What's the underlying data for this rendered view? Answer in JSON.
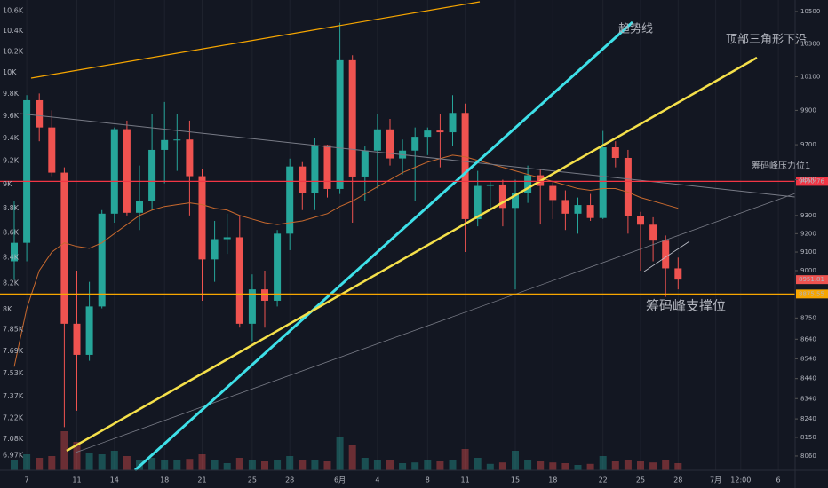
{
  "chart_data": {
    "type": "candlestick",
    "categories": [
      null,
      "7",
      null,
      null,
      null,
      "11",
      null,
      null,
      "14",
      null,
      null,
      null,
      "18",
      null,
      null,
      "21",
      null,
      null,
      null,
      "25",
      null,
      null,
      "28",
      null,
      null,
      null,
      "6月",
      null,
      null,
      "4",
      null,
      null,
      null,
      "8",
      null,
      null,
      "11",
      null,
      null,
      null,
      "15",
      null,
      null,
      "18",
      null,
      null,
      null,
      "22",
      null,
      null,
      "25",
      null,
      null,
      "28",
      null,
      null,
      "7月",
      null,
      "12:00",
      null,
      null,
      "6"
    ],
    "open": [
      9050,
      9150,
      9960,
      9800,
      9540,
      8720,
      8560,
      8810,
      9310,
      9790,
      9315,
      9380,
      9670,
      9727,
      9730,
      9520,
      9060,
      9170,
      9180,
      8720,
      8900,
      8840,
      9200,
      9575,
      9427,
      9697,
      9448,
      10200,
      9518,
      9666,
      9789,
      9621,
      9666,
      9746,
      9782,
      9772,
      9885,
      9280,
      9465,
      9473,
      9342,
      9426,
      9525,
      9465,
      9386,
      9310,
      9358,
      9286,
      9685,
      9624,
      9296,
      9249,
      9162,
      9012,
      null,
      null,
      null,
      null,
      null,
      null,
      null,
      null
    ],
    "high": [
      9380,
      9990,
      10000,
      9900,
      9570,
      9000,
      8940,
      9330,
      9800,
      9840,
      9580,
      9880,
      9950,
      9880,
      9840,
      9560,
      9270,
      9310,
      9300,
      8980,
      9000,
      9220,
      9620,
      9600,
      9740,
      9700,
      10430,
      10230,
      9690,
      9880,
      9850,
      9730,
      9800,
      9800,
      9880,
      9990,
      9940,
      9550,
      9490,
      9500,
      9500,
      9580,
      9560,
      9490,
      9440,
      9400,
      9420,
      9780,
      9720,
      9670,
      9320,
      9290,
      9190,
      9070,
      null,
      null,
      null,
      null,
      null,
      null,
      null,
      null
    ],
    "low": [
      8950,
      9050,
      9720,
      9520,
      8200,
      8280,
      8530,
      8800,
      9260,
      9300,
      9220,
      9330,
      9480,
      9550,
      9300,
      8840,
      8940,
      9090,
      8700,
      8630,
      8700,
      8810,
      9110,
      9330,
      9330,
      9400,
      9420,
      9260,
      9380,
      9450,
      9580,
      9530,
      9380,
      9640,
      9570,
      9690,
      9100,
      9240,
      9330,
      9240,
      8900,
      9370,
      9250,
      9280,
      9220,
      9200,
      9270,
      9280,
      9570,
      9200,
      9000,
      9050,
      8860,
      8900,
      null,
      null,
      null,
      null,
      null,
      null,
      null,
      null
    ],
    "close": [
      9150,
      9960,
      9800,
      9540,
      8720,
      8560,
      8810,
      9310,
      9790,
      9315,
      9380,
      9670,
      9727,
      9730,
      9520,
      9060,
      9170,
      9180,
      8720,
      8900,
      8840,
      9200,
      9575,
      9427,
      9697,
      9448,
      10200,
      9518,
      9666,
      9789,
      9621,
      9666,
      9746,
      9782,
      9772,
      9885,
      9280,
      9465,
      9473,
      9342,
      9426,
      9525,
      9465,
      9386,
      9310,
      9358,
      9286,
      9685,
      9624,
      9296,
      9249,
      9162,
      9012,
      8951.81,
      null,
      null,
      null,
      null,
      null,
      null,
      null,
      null
    ],
    "volume": [
      30,
      45,
      35,
      40,
      110,
      80,
      50,
      45,
      55,
      40,
      30,
      35,
      30,
      28,
      32,
      45,
      30,
      20,
      35,
      30,
      25,
      30,
      40,
      30,
      28,
      25,
      95,
      70,
      35,
      30,
      30,
      20,
      22,
      28,
      25,
      30,
      60,
      35,
      18,
      22,
      55,
      30,
      25,
      22,
      20,
      15,
      18,
      40,
      25,
      30,
      25,
      22,
      28,
      20,
      null,
      null,
      null,
      null,
      null,
      null,
      null,
      null
    ],
    "ma": [
      8500,
      8800,
      9000,
      9100,
      9150,
      9130,
      9120,
      9150,
      9200,
      9250,
      9300,
      9330,
      9350,
      9360,
      9370,
      9360,
      9340,
      9330,
      9300,
      9280,
      9260,
      9250,
      9260,
      9270,
      9290,
      9310,
      9350,
      9380,
      9420,
      9460,
      9500,
      9540,
      9570,
      9600,
      9620,
      9640,
      9630,
      9610,
      9590,
      9570,
      9550,
      9530,
      9510,
      9490,
      9470,
      9450,
      9440,
      9450,
      9450,
      9430,
      9400,
      9380,
      9360,
      9340,
      null,
      null,
      null,
      null,
      null,
      null,
      null,
      null
    ],
    "up_color": "#26a69a",
    "down_color": "#ef5350",
    "ma_color": "#c8692e",
    "axis": "y2",
    "ylim": [
      6872,
      10706
    ],
    "ylog": true,
    "yticks": [
      {
        "value": 10600,
        "label": "10.6K"
      },
      {
        "value": 10400,
        "label": "10.4K"
      },
      {
        "value": 10200,
        "label": "10.2K"
      },
      {
        "value": 10000,
        "label": "10K"
      },
      {
        "value": 9800,
        "label": "9.8K"
      },
      {
        "value": 9600,
        "label": "9.6K"
      },
      {
        "value": 9400,
        "label": "9.4K"
      },
      {
        "value": 9200,
        "label": "9.2K"
      },
      {
        "value": 9000,
        "label": "9K"
      },
      {
        "value": 8800,
        "label": "8.8K"
      },
      {
        "value": 8600,
        "label": "8.6K"
      },
      {
        "value": 8400,
        "label": "8.4K"
      },
      {
        "value": 8200,
        "label": "8.2K"
      },
      {
        "value": 8000,
        "label": "8K"
      },
      {
        "value": 7850,
        "label": "7.85K"
      },
      {
        "value": 7690,
        "label": "7.69K"
      },
      {
        "value": 7530,
        "label": "7.53K"
      },
      {
        "value": 7370,
        "label": "7.37K"
      },
      {
        "value": 7220,
        "label": "7.22K"
      },
      {
        "value": 7080,
        "label": "7.08K"
      },
      {
        "value": 6970,
        "label": "6.97K"
      }
    ],
    "y2lim": [
      7992,
      10572
    ],
    "y2log": true,
    "y2ticks": [
      10500,
      10300,
      10100,
      9900,
      9700,
      9500,
      9300,
      9200,
      9100,
      9000,
      8750,
      8640,
      8540,
      8440,
      8340,
      8240,
      8150,
      8060
    ],
    "volume_lim": [
      0,
      150
    ],
    "levels": [
      9490.76,
      8875.55
    ],
    "level_colors": [
      "#f23645",
      "#f7a600"
    ],
    "grid": true,
    "annotations": [
      {
        "text": "趋势线",
        "color": "#3ee0e8"
      },
      {
        "text": "顶部三角形下沿",
        "color": "#f5e04a"
      },
      {
        "text": "筹码峰压力位1",
        "color": "#f23645"
      },
      {
        "text": "筹码峰支撑位",
        "color": "#f7a600"
      }
    ]
  }
}
